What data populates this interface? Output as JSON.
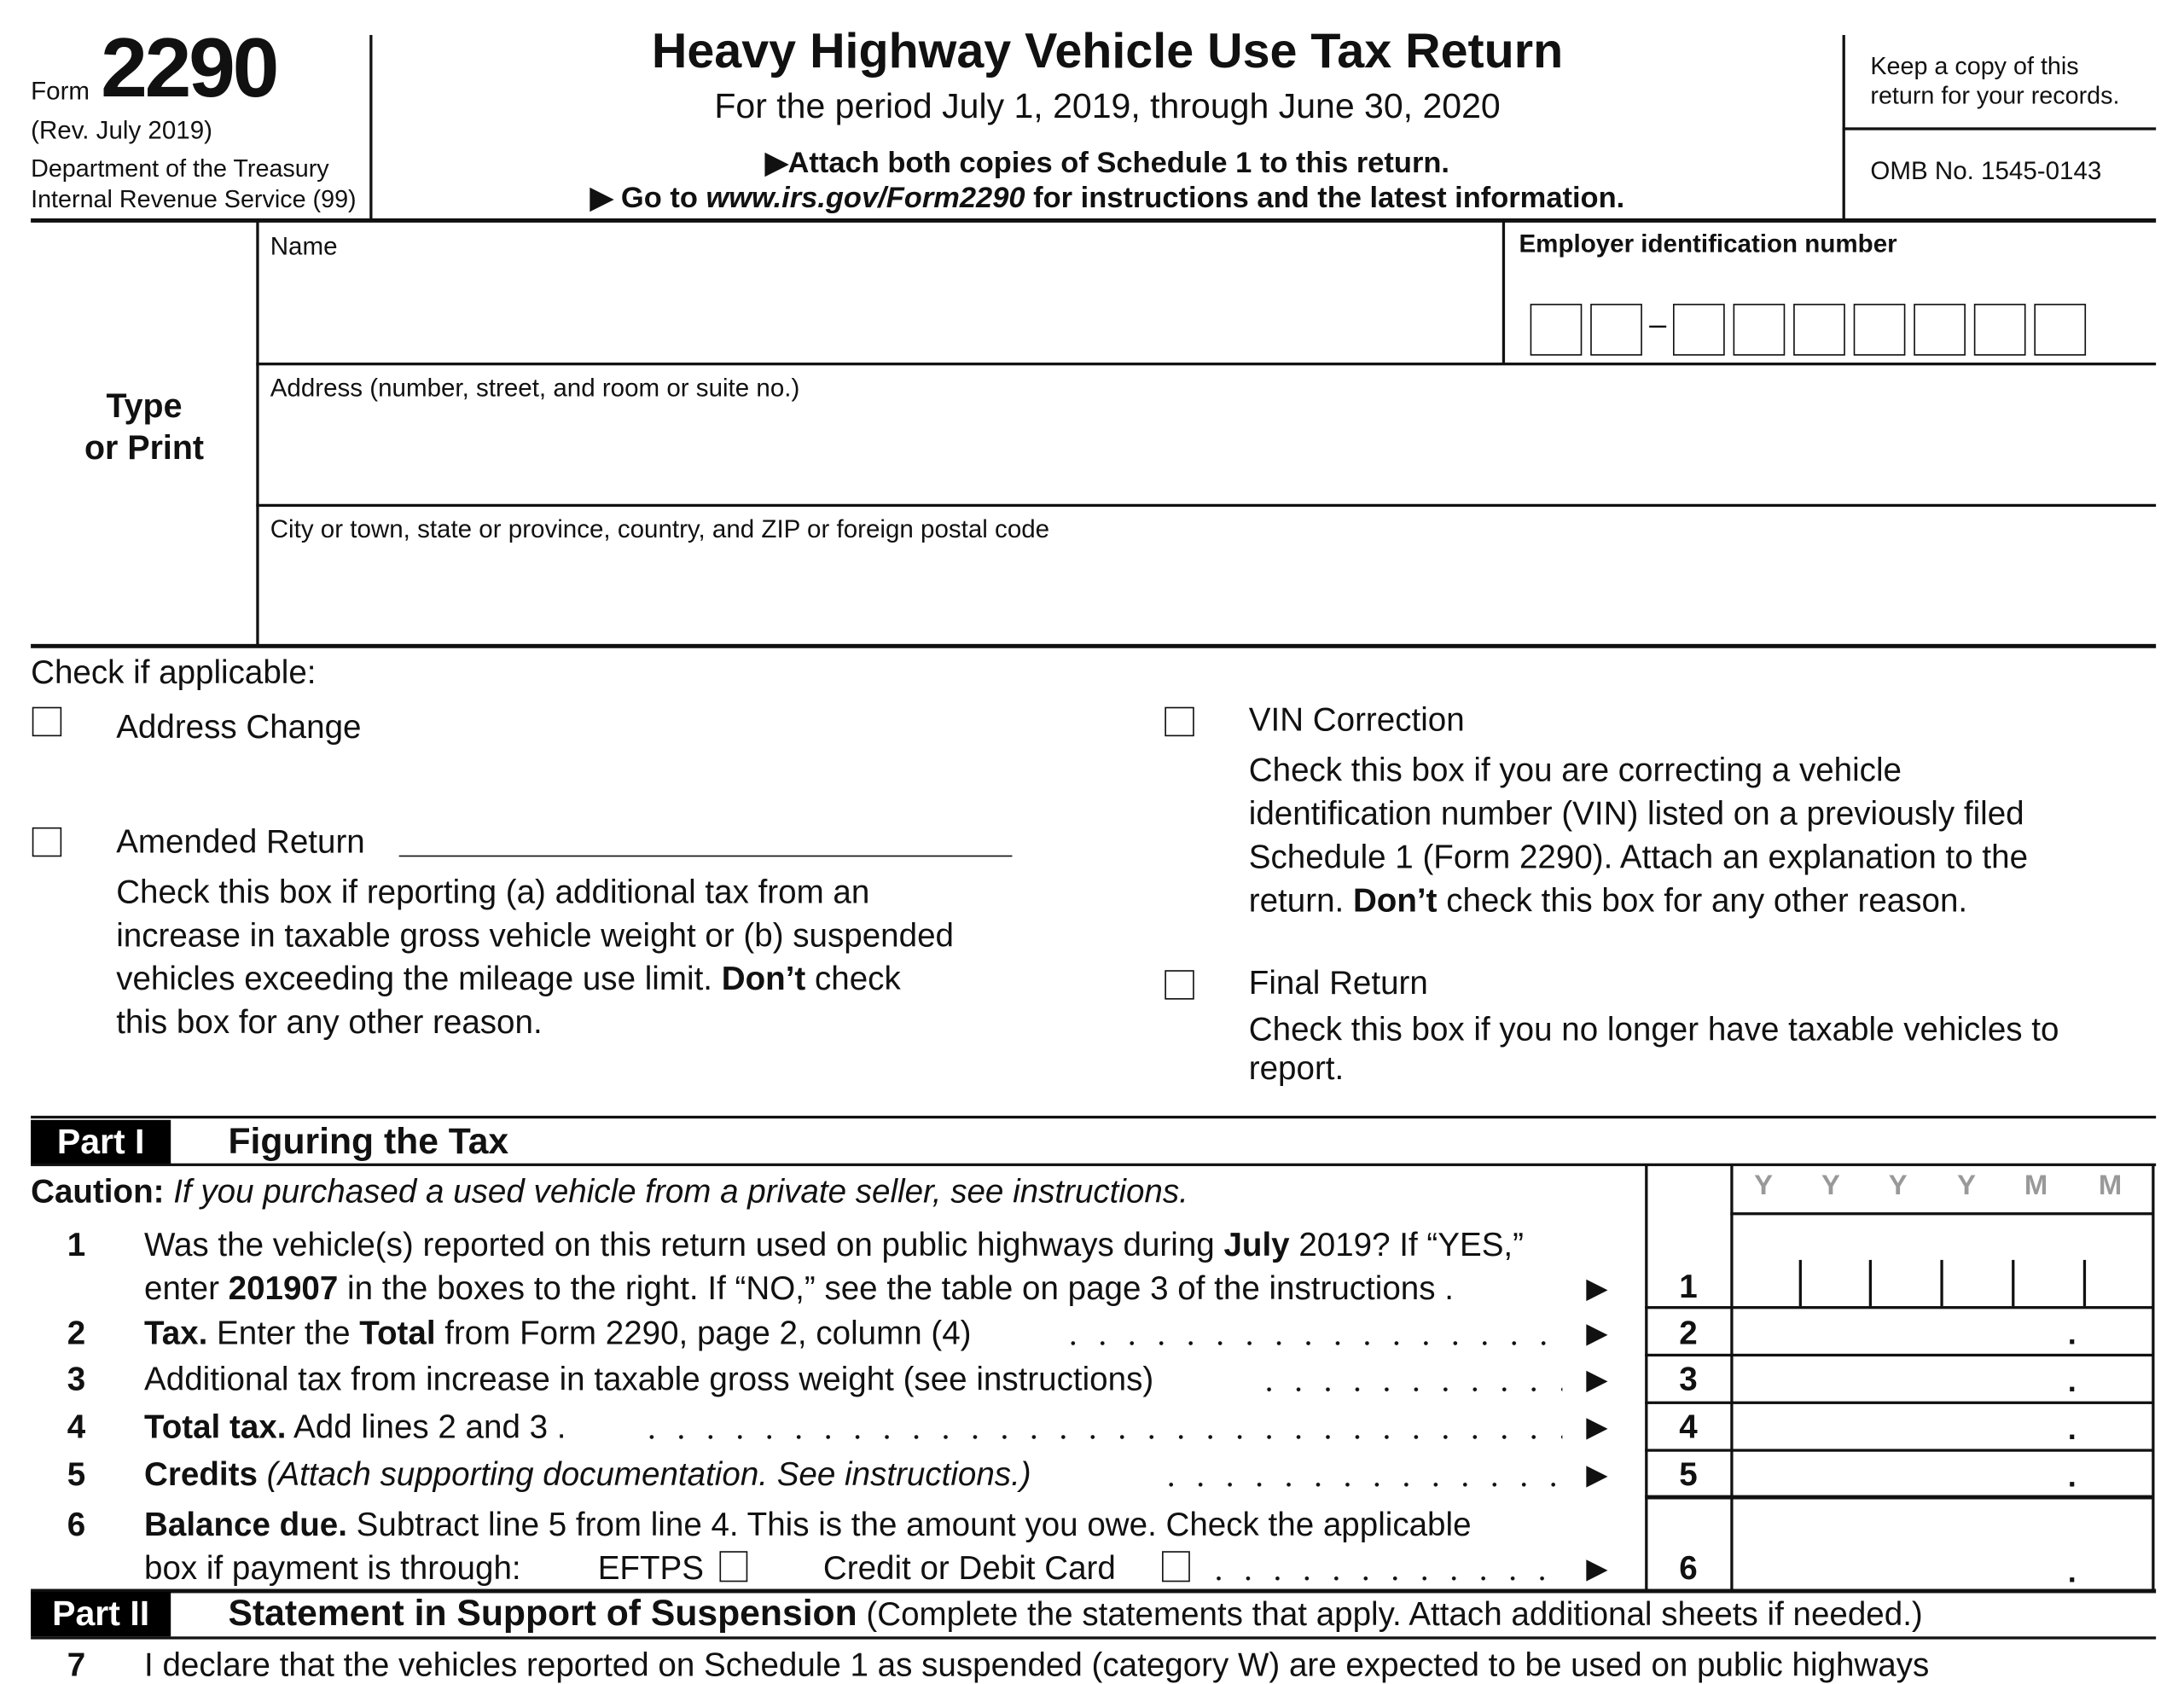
{
  "header": {
    "form_word": "Form",
    "form_number": "2290",
    "revision": "(Rev. July 2019)",
    "department": "Department of the Treasury",
    "agency": "Internal Revenue Service (99)",
    "title": "Heavy Highway Vehicle Use Tax Return",
    "period": "For the period July 1, 2019, through June 30, 2020",
    "attach_note": "▶Attach both copies of Schedule 1 to this return.",
    "goto_prefix": "▶ Go to ",
    "goto_url": "www.irs.gov/Form2290",
    "goto_suffix": " for instructions and the latest information.",
    "keep_copy_line1": "Keep a copy of this",
    "keep_copy_line2": "return for your records.",
    "omb": "OMB No. 1545-0143"
  },
  "taxpayer": {
    "side_label_line1": "Type",
    "side_label_line2": "or Print",
    "name_label": "Name",
    "ein_label": "Employer identification number",
    "ein_dash": "–",
    "address_label": "Address (number, street, and room or suite no.)",
    "city_label": "City or town, state or province, country, and ZIP or foreign postal code"
  },
  "checks": {
    "heading": "Check if applicable:",
    "address_change": "Address Change",
    "amended_return": "Amended Return",
    "amended_desc": [
      "Check this box if reporting (a) additional tax from an",
      "increase in taxable gross vehicle weight or (b) suspended",
      "vehicles exceeding the mileage use limit. ",
      "Don’t",
      " check",
      "this box for any other reason."
    ],
    "vin_correction": "VIN Correction",
    "vin_desc": [
      "Check this box if you are correcting a vehicle",
      "identification number (VIN) listed on a previously filed",
      "Schedule 1 (Form 2290). Attach an explanation to the",
      "return. ",
      "Don’t",
      " check this box for any other reason."
    ],
    "final_return": "Final Return",
    "final_desc": [
      "Check this box if you no longer have taxable vehicles to",
      "report."
    ]
  },
  "part1": {
    "tag": "Part I",
    "title": "Figuring the Tax",
    "caution_label": "Caution:",
    "caution_text": " If you purchased a used vehicle from a private seller, see instructions.",
    "date_headers": [
      "Y",
      "Y",
      "Y",
      "Y",
      "M",
      "M"
    ],
    "lines": [
      {
        "num": "1",
        "text_a": "Was the vehicle(s) reported on this return used on public highways during ",
        "bold_a": "July",
        "text_b": " 2019? If “YES,”",
        "text_c": "enter ",
        "bold_c": "201907",
        "text_d": " in the boxes to the right. If “NO,” see the table on page 3 of the instructions ."
      },
      {
        "num": "2",
        "bold": "Tax.",
        "text": " Enter the ",
        "bold2": "Total",
        "text2": " from Form 2290, page 2, column (4)"
      },
      {
        "num": "3",
        "text": "Additional tax from increase in taxable gross weight (see instructions)"
      },
      {
        "num": "4",
        "bold": "Total tax.",
        "text": " Add lines 2 and 3 ."
      },
      {
        "num": "5",
        "bold": "Credits",
        "italic": " (Attach supporting documentation. See instructions.)"
      },
      {
        "num": "6",
        "bold": "Balance due.",
        "text": " Subtract line 5 from line 4. This is the amount you owe. Check the applicable",
        "text2": "box if payment is through:",
        "eftps": "EFTPS",
        "card": "Credit or Debit Card"
      }
    ],
    "arrow": "▶",
    "decimal": "."
  },
  "part2": {
    "tag": "Part II",
    "title": "Statement in Support of Suspension",
    "note": " (Complete the statements that apply. Attach additional sheets if needed.)",
    "line7_num": "7",
    "line7_text": "I declare that the vehicles reported on Schedule 1 as suspended (category W) are expected to be used on public highways"
  }
}
